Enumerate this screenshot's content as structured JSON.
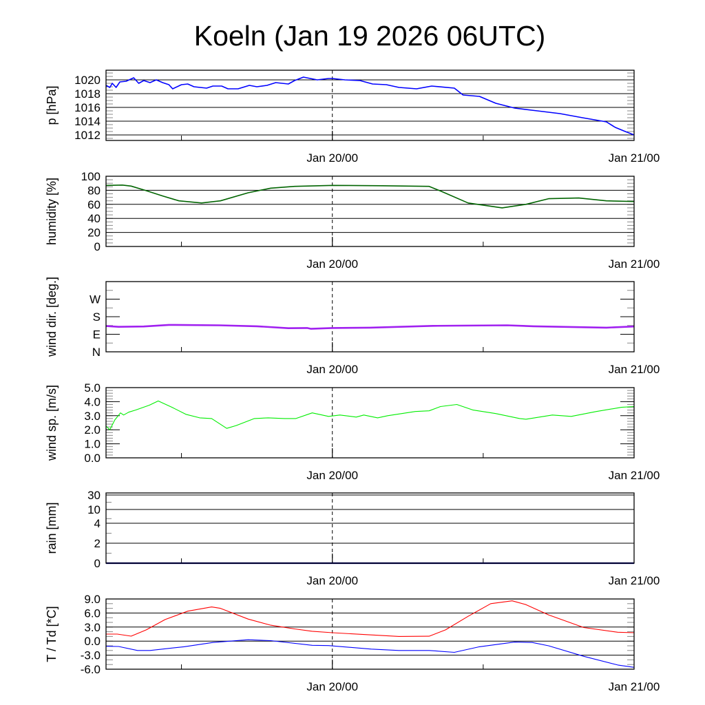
{
  "title": "Koeln (Jan 19 2026 06UTC)",
  "x_axis": {
    "range_hours": [
      0,
      42
    ],
    "start": "Jan 19 2026 06UTC",
    "tick_labels": [
      {
        "hour": 18,
        "label": "Jan 20/00"
      },
      {
        "hour": 42,
        "label": "Jan 21/00"
      }
    ],
    "minor_ticks_hours": [
      6,
      30
    ],
    "dashed_line_hour": 18
  },
  "chart_data": [
    {
      "type": "line",
      "id": "pressure",
      "ylabel": "p [hPa]",
      "ylim": [
        1011.2,
        1021.4
      ],
      "minor_tick_step": 0.5,
      "grid": true,
      "yticks": [
        {
          "value": 1012,
          "label": "1012"
        },
        {
          "value": 1014,
          "label": "1014"
        },
        {
          "value": 1016,
          "label": "1016"
        },
        {
          "value": 1018,
          "label": "1018"
        },
        {
          "value": 1020,
          "label": "1020"
        }
      ],
      "series": [
        {
          "name": "pressure",
          "color": "#0000ff",
          "width": 1.6,
          "points": [
            [
              0,
              1019.2
            ],
            [
              0.3,
              1018.9
            ],
            [
              0.5,
              1019.5
            ],
            [
              0.8,
              1018.9
            ],
            [
              1.1,
              1019.7
            ],
            [
              1.6,
              1019.8
            ],
            [
              2.2,
              1020.3
            ],
            [
              2.6,
              1019.5
            ],
            [
              3.0,
              1019.9
            ],
            [
              3.5,
              1019.6
            ],
            [
              4.0,
              1020.0
            ],
            [
              4.5,
              1019.6
            ],
            [
              5.0,
              1019.3
            ],
            [
              5.3,
              1018.7
            ],
            [
              6.0,
              1019.3
            ],
            [
              6.5,
              1019.4
            ],
            [
              7.0,
              1019.0
            ],
            [
              8.0,
              1018.8
            ],
            [
              8.5,
              1019.1
            ],
            [
              9.2,
              1019.1
            ],
            [
              9.7,
              1018.7
            ],
            [
              10.5,
              1018.7
            ],
            [
              11.4,
              1019.2
            ],
            [
              12.0,
              1019.0
            ],
            [
              12.8,
              1019.2
            ],
            [
              13.5,
              1019.6
            ],
            [
              14.5,
              1019.4
            ],
            [
              15.0,
              1019.9
            ],
            [
              15.7,
              1020.4
            ],
            [
              16.8,
              1020.0
            ],
            [
              17.7,
              1020.2
            ],
            [
              18.0,
              1020.2
            ],
            [
              19.0,
              1020.0
            ],
            [
              20.2,
              1019.9
            ],
            [
              21.2,
              1019.4
            ],
            [
              22.3,
              1019.3
            ],
            [
              23.3,
              1018.9
            ],
            [
              24.7,
              1018.7
            ],
            [
              25.9,
              1019.1
            ],
            [
              27.7,
              1018.8
            ],
            [
              28.4,
              1017.8
            ],
            [
              29.7,
              1017.6
            ],
            [
              31.0,
              1016.6
            ],
            [
              32.5,
              1015.9
            ],
            [
              34.3,
              1015.5
            ],
            [
              36.1,
              1015.1
            ],
            [
              37.9,
              1014.5
            ],
            [
              39.8,
              1013.9
            ],
            [
              40.5,
              1013.1
            ],
            [
              41.3,
              1012.5
            ],
            [
              42.0,
              1012.0
            ]
          ]
        }
      ]
    },
    {
      "type": "line",
      "id": "humidity",
      "ylabel": "humidity [%]",
      "ylim": [
        0,
        100
      ],
      "minor_tick_step": 5,
      "grid": true,
      "yticks": [
        {
          "value": 0,
          "label": "0"
        },
        {
          "value": 20,
          "label": "20"
        },
        {
          "value": 40,
          "label": "40"
        },
        {
          "value": 60,
          "label": "60"
        },
        {
          "value": 80,
          "label": "80"
        },
        {
          "value": 100,
          "label": "100"
        }
      ],
      "series": [
        {
          "name": "humidity",
          "color": "#006400",
          "width": 1.6,
          "points": [
            [
              0,
              87
            ],
            [
              1.3,
              87.5
            ],
            [
              2,
              86
            ],
            [
              3.1,
              80
            ],
            [
              4.5,
              72
            ],
            [
              5.8,
              65
            ],
            [
              7.6,
              62
            ],
            [
              9.1,
              65
            ],
            [
              11.3,
              76.5
            ],
            [
              13.1,
              83
            ],
            [
              15,
              85.6
            ],
            [
              18,
              87
            ],
            [
              22,
              86.5
            ],
            [
              25.7,
              85.6
            ],
            [
              26.6,
              79
            ],
            [
              28.8,
              62
            ],
            [
              31.5,
              55
            ],
            [
              33.4,
              60
            ],
            [
              35.2,
              68
            ],
            [
              37.6,
              69
            ],
            [
              39.8,
              65
            ],
            [
              42,
              64
            ]
          ]
        }
      ]
    },
    {
      "type": "line",
      "id": "wind-direction",
      "ylabel": "wind dir. [deg.]",
      "ylim": [
        0,
        360
      ],
      "minor_tick_step": 45,
      "grid": false,
      "yticks": [
        {
          "value": 0,
          "label": "N"
        },
        {
          "value": 90,
          "label": "E"
        },
        {
          "value": 180,
          "label": "S"
        },
        {
          "value": 270,
          "label": "W"
        }
      ],
      "series": [
        {
          "name": "wind direction",
          "color": "#a020f0",
          "width": 2.6,
          "points": [
            [
              0,
              132
            ],
            [
              1,
              128
            ],
            [
              3,
              130
            ],
            [
              5,
              138
            ],
            [
              9,
              136
            ],
            [
              12,
              131
            ],
            [
              14.5,
              121
            ],
            [
              16,
              122
            ],
            [
              16.3,
              118
            ],
            [
              18,
              122
            ],
            [
              21,
              124
            ],
            [
              26,
              133
            ],
            [
              28,
              134
            ],
            [
              31.9,
              136
            ],
            [
              34,
              131
            ],
            [
              38,
              126
            ],
            [
              39.8,
              124
            ],
            [
              42,
              130
            ]
          ]
        }
      ]
    },
    {
      "type": "line",
      "id": "wind-speed",
      "ylabel": "wind sp. [m/s]",
      "ylim": [
        0,
        5
      ],
      "minor_tick_step": 0.2,
      "grid": false,
      "yticks": [
        {
          "value": 0,
          "label": "0.0"
        },
        {
          "value": 1,
          "label": "1.0"
        },
        {
          "value": 2,
          "label": "2.0"
        },
        {
          "value": 3,
          "label": "3.0"
        },
        {
          "value": 4,
          "label": "4.0"
        },
        {
          "value": 5,
          "label": "5.0"
        }
      ],
      "series": [
        {
          "name": "wind speed",
          "color": "#00ee00",
          "width": 1.1,
          "points": [
            [
              0,
              2.26
            ],
            [
              0.3,
              2.0
            ],
            [
              0.7,
              2.7
            ],
            [
              1.15,
              3.2
            ],
            [
              1.4,
              3.05
            ],
            [
              1.8,
              3.25
            ],
            [
              2.35,
              3.4
            ],
            [
              3.45,
              3.75
            ],
            [
              4.15,
              4.05
            ],
            [
              5.25,
              3.6
            ],
            [
              6.35,
              3.1
            ],
            [
              7.45,
              2.85
            ],
            [
              8.4,
              2.8
            ],
            [
              9.6,
              2.1
            ],
            [
              10.35,
              2.3
            ],
            [
              11.8,
              2.8
            ],
            [
              12.9,
              2.85
            ],
            [
              14.2,
              2.8
            ],
            [
              15.1,
              2.8
            ],
            [
              16.4,
              3.2
            ],
            [
              17.7,
              2.95
            ],
            [
              18.6,
              3.05
            ],
            [
              19.9,
              2.9
            ],
            [
              20.5,
              3.05
            ],
            [
              21.6,
              2.85
            ],
            [
              22.4,
              3.0
            ],
            [
              24.6,
              3.3
            ],
            [
              25.7,
              3.35
            ],
            [
              26.6,
              3.65
            ],
            [
              27.9,
              3.8
            ],
            [
              29.2,
              3.4
            ],
            [
              31,
              3.15
            ],
            [
              32.9,
              2.8
            ],
            [
              33.4,
              2.75
            ],
            [
              35.5,
              3.05
            ],
            [
              37,
              2.95
            ],
            [
              39,
              3.3
            ],
            [
              41,
              3.6
            ],
            [
              42,
              3.65
            ]
          ]
        }
      ]
    },
    {
      "type": "line",
      "id": "rain",
      "ylabel": "rain [mm]",
      "ylim": [
        0,
        30
      ],
      "minor_tick_step": 1,
      "grid": true,
      "yticks": [
        {
          "value": 0,
          "label": "0"
        },
        {
          "value": 2,
          "label": "2"
        },
        {
          "value": 4,
          "label": "4"
        },
        {
          "value": 10,
          "label": "10"
        },
        {
          "value": 30,
          "label": "30"
        }
      ],
      "series": [
        {
          "name": "rain",
          "color": "#00008b",
          "width": 2.2,
          "points": [
            [
              0,
              0
            ],
            [
              42,
              0
            ]
          ]
        }
      ]
    },
    {
      "type": "line",
      "id": "temperature",
      "ylabel": "T / Td [*C]",
      "ylim": [
        -6,
        9
      ],
      "minor_tick_step": 1,
      "grid": true,
      "yticks": [
        {
          "value": -6,
          "label": "-6.0"
        },
        {
          "value": -3,
          "label": "-3.0"
        },
        {
          "value": 0,
          "label": "0.0"
        },
        {
          "value": 3,
          "label": "3.0"
        },
        {
          "value": 6,
          "label": "6.0"
        },
        {
          "value": 9,
          "label": "9.0"
        }
      ],
      "series": [
        {
          "name": "T",
          "color": "#ff0000",
          "width": 1.1,
          "points": [
            [
              0,
              1.5
            ],
            [
              0.9,
              1.5
            ],
            [
              2,
              1.06
            ],
            [
              3.2,
              2.4
            ],
            [
              4.7,
              4.6
            ],
            [
              6.5,
              6.4
            ],
            [
              8.4,
              7.3
            ],
            [
              9.1,
              7.0
            ],
            [
              11.3,
              4.7
            ],
            [
              13.1,
              3.4
            ],
            [
              15,
              2.6
            ],
            [
              16.4,
              2.1
            ],
            [
              18,
              1.8
            ],
            [
              20.6,
              1.4
            ],
            [
              23.3,
              1.0
            ],
            [
              25.7,
              1.05
            ],
            [
              27,
              2.4
            ],
            [
              28.8,
              5.3
            ],
            [
              30.6,
              8.0
            ],
            [
              32.3,
              8.6
            ],
            [
              33.4,
              7.8
            ],
            [
              35.2,
              5.6
            ],
            [
              38,
              2.9
            ],
            [
              40.7,
              1.9
            ],
            [
              42,
              1.8
            ]
          ]
        },
        {
          "name": "Td",
          "color": "#0000ff",
          "width": 1.1,
          "points": [
            [
              0,
              -1.1
            ],
            [
              1,
              -1.15
            ],
            [
              2.5,
              -2.0
            ],
            [
              3.5,
              -2.0
            ],
            [
              6.2,
              -1.2
            ],
            [
              8.5,
              -0.3
            ],
            [
              11.3,
              0.3
            ],
            [
              13.1,
              0.1
            ],
            [
              16.4,
              -0.9
            ],
            [
              17.7,
              -0.95
            ],
            [
              21.1,
              -1.7
            ],
            [
              23.3,
              -2.0
            ],
            [
              25.7,
              -2.0
            ],
            [
              27.7,
              -2.4
            ],
            [
              29.7,
              -1.2
            ],
            [
              32.5,
              -0.2
            ],
            [
              33.9,
              -0.3
            ],
            [
              35.2,
              -1.0
            ],
            [
              38,
              -3.25
            ],
            [
              40.7,
              -5.1
            ],
            [
              42,
              -5.6
            ]
          ]
        }
      ]
    }
  ]
}
